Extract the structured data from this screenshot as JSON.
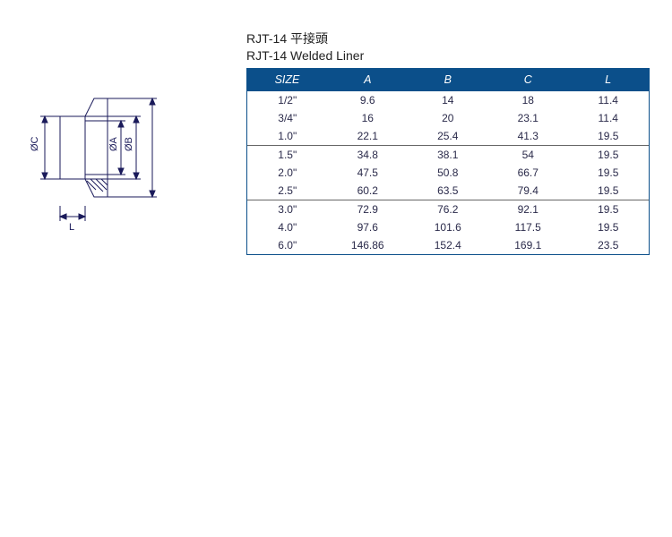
{
  "titles": {
    "line1": "RJT-14 平接頭",
    "line2": "RJT-14 Welded Liner"
  },
  "table": {
    "header_bg": "#0b4f8a",
    "header_fg": "#ffffff",
    "border_color": "#0b4f8a",
    "row_fg": "#2a2a4a",
    "columns": [
      "SIZE",
      "A",
      "B",
      "C",
      "L"
    ],
    "groups": [
      [
        {
          "size": "1/2\"",
          "a": "9.6",
          "b": "14",
          "c": "18",
          "l": "11.4"
        },
        {
          "size": "3/4\"",
          "a": "16",
          "b": "20",
          "c": "23.1",
          "l": "11.4"
        },
        {
          "size": "1.0\"",
          "a": "22.1",
          "b": "25.4",
          "c": "41.3",
          "l": "19.5"
        }
      ],
      [
        {
          "size": "1.5\"",
          "a": "34.8",
          "b": "38.1",
          "c": "54",
          "l": "19.5"
        },
        {
          "size": "2.0\"",
          "a": "47.5",
          "b": "50.8",
          "c": "66.7",
          "l": "19.5"
        },
        {
          "size": "2.5\"",
          "a": "60.2",
          "b": "63.5",
          "c": "79.4",
          "l": "19.5"
        }
      ],
      [
        {
          "size": "3.0\"",
          "a": "72.9",
          "b": "76.2",
          "c": "92.1",
          "l": "19.5"
        },
        {
          "size": "4.0\"",
          "a": "97.6",
          "b": "101.6",
          "c": "117.5",
          "l": "19.5"
        },
        {
          "size": "6.0\"",
          "a": "146.86",
          "b": "152.4",
          "c": "169.1",
          "l": "23.5"
        }
      ]
    ]
  },
  "diagram": {
    "labels": {
      "oc": "ØC",
      "oa": "ØA",
      "ob": "ØB",
      "l": "L"
    },
    "line_color": "#1a1a5a",
    "line_width": 1,
    "font_size": 11
  }
}
